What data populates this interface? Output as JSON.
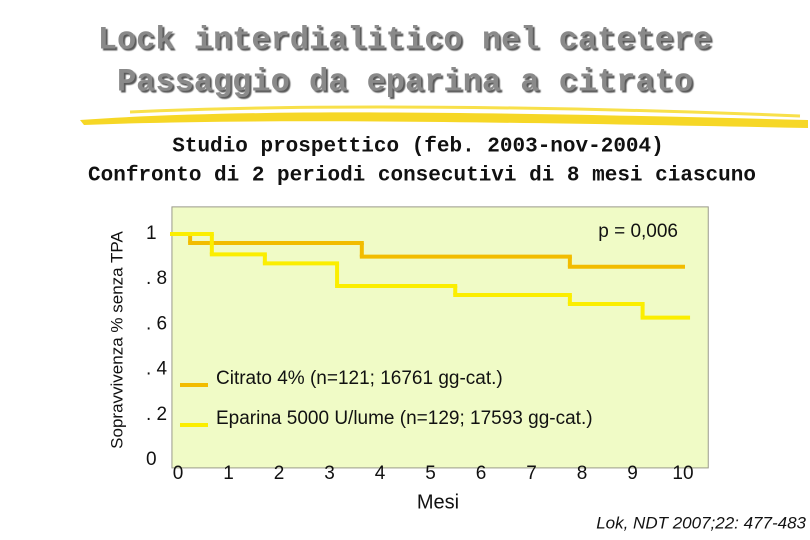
{
  "chart_data": {
    "type": "step",
    "title": [
      "Lock interdialitico nel catetere",
      "Passaggio da eparina a citrato"
    ],
    "subtitle": [
      "Studio prospettico (feb. 2003-nov-2004)",
      "Confronto di 2 periodi consecutivi di 8 mesi ciascuno"
    ],
    "y_label": "Sopravvivenza % senza TPA",
    "x_label": "Mesi",
    "annotation": "p = 0,006",
    "source": "Lok, NDT 2007;22: 477-483",
    "xlim": [
      -0.12,
      10.5
    ],
    "ylim": [
      -0.035,
      1.12
    ],
    "xticks": [
      0,
      1,
      2,
      3,
      4,
      5,
      6,
      7,
      8,
      9,
      10
    ],
    "yticks": [
      0,
      {
        "value": 0.2,
        "label": ". 2"
      },
      {
        "value": 0.4,
        "label": ". 4"
      },
      {
        "value": 0.6,
        "label": ". 6"
      },
      {
        "value": 0.8,
        "label": ". 8"
      },
      1
    ],
    "series": [
      {
        "name": "Citrato 4% (n=121; 16761 gg-cat.)",
        "color": "#f2bc00",
        "bins": [
          0,
          0.24,
          3.64,
          7.76,
          10
        ],
        "values": [
          1,
          0.96,
          0.9,
          0.855
        ]
      },
      {
        "name": "Eparina 5000 U/lume (n=129; 17593 gg-cat.)",
        "color": "#fbee00",
        "bins": [
          0,
          0.67,
          1.72,
          3.15,
          5.49,
          7.76,
          9.2,
          10.1
        ],
        "values": [
          1,
          0.91,
          0.87,
          0.77,
          0.73,
          0.69,
          0.63
        ]
      }
    ]
  }
}
